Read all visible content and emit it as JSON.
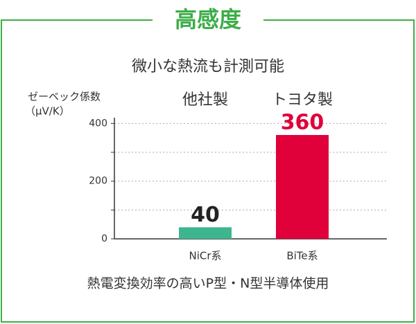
{
  "chart_data": {
    "type": "bar",
    "title": "高感度",
    "subtitle": "微小な熱流も計測可能",
    "ylabel": [
      "ゼーベック係数",
      "（μV/K）"
    ],
    "series_labels": [
      "他社製",
      "トヨタ製"
    ],
    "categories": [
      "NiCr系",
      "BiTe系"
    ],
    "values": [
      40,
      360
    ],
    "colors": [
      "#3db58e",
      "#e0003a"
    ],
    "ylim": [
      0,
      420
    ],
    "yticks": [
      0,
      200,
      400
    ],
    "minor_yticks": [
      100,
      300
    ],
    "grid": true,
    "footnote": "熱電変換効率の高いP型・N型半導体使用"
  }
}
